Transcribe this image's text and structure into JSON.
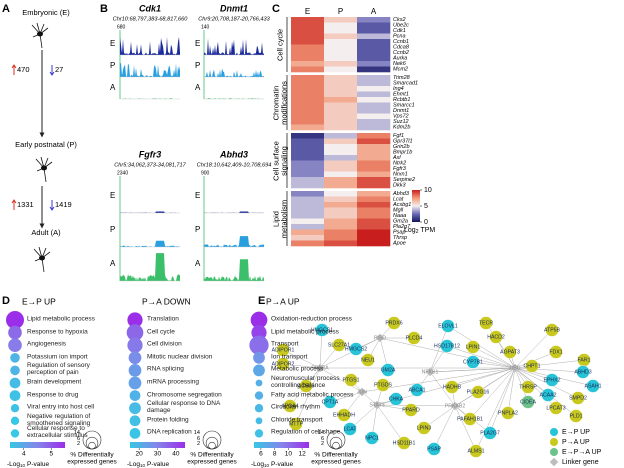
{
  "panel_a": {
    "letter": "A",
    "stages": [
      "Embryonic (E)",
      "Early postnatal (P)",
      "Adult (A)"
    ],
    "transitions": [
      {
        "up": 470,
        "down": 27
      },
      {
        "up": 1331,
        "down": 1419
      }
    ],
    "up_color": "#d93025",
    "down_color": "#3a3ad0"
  },
  "panel_b": {
    "letter": "B",
    "track_labels": [
      "E",
      "P",
      "A"
    ],
    "track_colors": [
      "#1b2a9c",
      "#2a9fe0",
      "#3cbf6a"
    ],
    "genes": [
      {
        "name": "Cdk1",
        "locus": "Chr10:68,797,383-68,817,660",
        "scale": 680
      },
      {
        "name": "Dnmt1",
        "locus": "Chr9:20,708,187-20,766,433",
        "scale": 140
      },
      {
        "name": "Fgfr3",
        "locus": "Chr5:34,062,373-34,081,717",
        "scale": 2340
      },
      {
        "name": "Abhd3",
        "locus": "Chr18:10,642,409-10,708,694",
        "scale": 900
      }
    ]
  },
  "panel_c": {
    "letter": "C",
    "columns": [
      "E",
      "P",
      "A"
    ],
    "clim": [
      0,
      10
    ],
    "colormap": [
      "#14145a",
      "#6a6ab8",
      "#f4eeee",
      "#f29a78",
      "#c81e1e"
    ],
    "colorbar": {
      "ticks": [
        10,
        5,
        0
      ],
      "log": "Log",
      "sub": "2",
      "unit": "TPM"
    },
    "groups": [
      {
        "name": "Cell cycle",
        "genes": [
          "Cks2",
          "Ube2c",
          "Cdk1",
          "Pcna",
          "Ccnb1",
          "Cdca8",
          "Ccnb2",
          "Aurka",
          "Nek6",
          "Mcm2"
        ],
        "values": [
          [
            9,
            6,
            3
          ],
          [
            9,
            5,
            2
          ],
          [
            9,
            5,
            2
          ],
          [
            9,
            6,
            4
          ],
          [
            9,
            5,
            2
          ],
          [
            8,
            5,
            2
          ],
          [
            8,
            5,
            2
          ],
          [
            8,
            5,
            2
          ],
          [
            7,
            6,
            3
          ],
          [
            8,
            5,
            1
          ]
        ]
      },
      {
        "name": "Chromatin modifications",
        "genes": [
          "Trim28",
          "Smarcad1",
          "Ing4",
          "Ehmt1",
          "Rcbtb1",
          "Smarcc1",
          "Dnmt1",
          "Vps72",
          "Suz12",
          "Kdm2b"
        ],
        "values": [
          [
            8,
            6,
            4
          ],
          [
            8,
            6,
            4
          ],
          [
            8,
            6,
            5
          ],
          [
            8,
            6,
            4
          ],
          [
            8,
            7,
            5
          ],
          [
            8,
            6,
            4
          ],
          [
            8,
            6,
            4
          ],
          [
            8,
            6,
            5
          ],
          [
            8,
            6,
            4
          ],
          [
            7,
            6,
            4
          ]
        ]
      },
      {
        "name": "Cell surface signaling",
        "genes": [
          "Fgf1",
          "Gpr37l1",
          "Grin2b",
          "Bmpr1b",
          "Axl",
          "Ntrk2",
          "Fgfr3",
          "Nrxn1",
          "Serpine2",
          "Dkk3"
        ],
        "values": [
          [
            1,
            4,
            8
          ],
          [
            2,
            6,
            9
          ],
          [
            2,
            5,
            7
          ],
          [
            2,
            5,
            7
          ],
          [
            2,
            4,
            7
          ],
          [
            3,
            6,
            8
          ],
          [
            3,
            6,
            8
          ],
          [
            3,
            5,
            7
          ],
          [
            4,
            7,
            9
          ],
          [
            4,
            7,
            9
          ]
        ]
      },
      {
        "name": "Lipid metabolism",
        "genes": [
          "Abhd3",
          "Lcat",
          "Acsbg1",
          "Mgll",
          "Naaa",
          "Gm2a",
          "Pla2g7",
          "Psap",
          "Thrsp",
          "Apoe"
        ],
        "values": [
          [
            3,
            5,
            7
          ],
          [
            4,
            6,
            8
          ],
          [
            4,
            7,
            9
          ],
          [
            4,
            6,
            8
          ],
          [
            4,
            6,
            8
          ],
          [
            5,
            7,
            9
          ],
          [
            4,
            7,
            9
          ],
          [
            7,
            8,
            10
          ],
          [
            6,
            8,
            10
          ],
          [
            8,
            9,
            10
          ]
        ]
      }
    ]
  },
  "panel_d": {
    "letter": "D",
    "colormap": [
      "#36c8e4",
      "#8585ea",
      "#9b2ee8"
    ],
    "legend": {
      "log": "-Log",
      "sub": "10",
      "pvalue": "P-value",
      "sizes": [
        14,
        6,
        2
      ],
      "size_label": [
        "% Differentially",
        "expressed genes"
      ]
    },
    "columns": [
      {
        "title": "E→P UP",
        "plim": [
          3.5,
          5.5
        ],
        "pticks": [
          4,
          5
        ],
        "terms": [
          {
            "label": "Lipid metabolic process",
            "p": 5.5,
            "size": 14
          },
          {
            "label": "Response to hypoxia",
            "p": 4.8,
            "size": 8
          },
          {
            "label": "Angiogenesis",
            "p": 4.6,
            "size": 8
          },
          {
            "label": "Potassium ion import",
            "p": 3.8,
            "size": 4
          },
          {
            "label": "Regulation of sensory perception of pain",
            "p": 3.8,
            "size": 4
          },
          {
            "label": "Brain development",
            "p": 3.7,
            "size": 5
          },
          {
            "label": "Response to drug",
            "p": 3.6,
            "size": 5
          },
          {
            "label": "Viral entry into host cell",
            "p": 3.6,
            "size": 3
          },
          {
            "label": "Negative regulation of smoothened signaling",
            "p": 3.5,
            "size": 3
          },
          {
            "label": "Cellular response to extracellular stimulus",
            "p": 3.5,
            "size": 3
          }
        ]
      },
      {
        "title": "P→A DOWN",
        "plim": [
          15,
          45
        ],
        "pticks": [
          20,
          30,
          40
        ],
        "terms": [
          {
            "label": "Translation",
            "p": 45,
            "size": 10
          },
          {
            "label": "Cell cycle",
            "p": 35,
            "size": 12
          },
          {
            "label": "Cell division",
            "p": 32,
            "size": 10
          },
          {
            "label": "Mitotic nuclear division",
            "p": 28,
            "size": 7
          },
          {
            "label": "RNA splicing",
            "p": 25,
            "size": 7
          },
          {
            "label": "mRNA processing",
            "p": 24,
            "size": 7
          },
          {
            "label": "Chromosome segregation",
            "p": 20,
            "size": 5
          },
          {
            "label": "Cellular response to DNA damage",
            "p": 18,
            "size": 6
          },
          {
            "label": "Protein folding",
            "p": 17,
            "size": 5
          },
          {
            "label": "DNA replication",
            "p": 16,
            "size": 5
          }
        ]
      },
      {
        "title": "P→A UP",
        "plim": [
          5,
          13
        ],
        "pticks": [
          6,
          8,
          10,
          12
        ],
        "terms": [
          {
            "label": "Oxidation-reduction process",
            "p": 13,
            "size": 12
          },
          {
            "label": "Lipid metabolic process",
            "p": 12,
            "size": 10
          },
          {
            "label": "Transport",
            "p": 10,
            "size": 16
          },
          {
            "label": "Ion transport",
            "p": 8,
            "size": 6
          },
          {
            "label": "Metabolic process",
            "p": 7,
            "size": 6
          },
          {
            "label": "Neuromuscular process controlling balance",
            "p": 6.5,
            "size": 2
          },
          {
            "label": "Fatty acid metabolic process",
            "p": 6.5,
            "size": 3
          },
          {
            "label": "Circadian rhythm",
            "p": 6,
            "size": 3
          },
          {
            "label": "Chloride transport",
            "p": 5.8,
            "size": 2
          },
          {
            "label": "Regulation of cell shape",
            "p": 5.5,
            "size": 3
          }
        ]
      }
    ]
  },
  "panel_e": {
    "letter": "E",
    "legend": [
      {
        "label": "E→P UP",
        "color": "#27c3d6"
      },
      {
        "label": "P→A UP",
        "color": "#c9c81c"
      },
      {
        "label": "E→P→A UP",
        "color": "#6dc28a"
      },
      {
        "label": "Linker gene",
        "color": "#bdbdbd"
      }
    ],
    "nodes": [
      {
        "label": "PRDX6",
        "group": 1
      },
      {
        "label": "PLCD4",
        "group": 1
      },
      {
        "label": "ELOVL1",
        "group": 0
      },
      {
        "label": "TECR",
        "group": 1
      },
      {
        "label": "HACD2",
        "group": 1
      },
      {
        "label": "ATP5B",
        "group": 1
      },
      {
        "label": "HMGCS1",
        "group": 0
      },
      {
        "label": "SLC27A1",
        "group": 1
      },
      {
        "label": "HMGCS2",
        "group": 0
      },
      {
        "label": "ADIPOR1",
        "group": 1
      },
      {
        "label": "ADIPOR2",
        "group": 1
      },
      {
        "label": "NEU1",
        "group": 1
      },
      {
        "label": "PISD",
        "group": 3
      },
      {
        "label": "HSD17B12",
        "group": 0
      },
      {
        "label": "LPIN1",
        "group": 1
      },
      {
        "label": "AGPAT3",
        "group": 1
      },
      {
        "label": "FDX1",
        "group": 1
      },
      {
        "label": "FAR1",
        "group": 1
      },
      {
        "label": "GM2A",
        "group": 0
      },
      {
        "label": "PPARA",
        "group": 3
      },
      {
        "label": "CYP7B1",
        "group": 0
      },
      {
        "label": "ACSL6",
        "group": 1
      },
      {
        "label": "PTGS1",
        "group": 1
      },
      {
        "label": "PTGDS",
        "group": 1
      },
      {
        "label": "ABCA1",
        "group": 0
      },
      {
        "label": "HADHB",
        "group": 1
      },
      {
        "label": "CHKA",
        "group": 0
      },
      {
        "label": "JUN",
        "group": 3
      },
      {
        "label": "CPT1A",
        "group": 0
      },
      {
        "label": "EHHADH",
        "group": 1
      },
      {
        "label": "APOA4",
        "group": 1
      },
      {
        "label": "MTTP",
        "group": 1
      },
      {
        "label": "LCAT",
        "group": 0
      },
      {
        "label": "NPC1",
        "group": 0
      },
      {
        "label": "STAT3",
        "group": 3
      },
      {
        "label": "PPARD",
        "group": 1
      },
      {
        "label": "HSD11B1",
        "group": 1
      },
      {
        "label": "LPIN3",
        "group": 1
      },
      {
        "label": "PSAP",
        "group": 0
      },
      {
        "label": "ALMS1",
        "group": 1
      },
      {
        "label": "PLA2G7",
        "group": 0
      },
      {
        "label": "PAFAH1B1",
        "group": 1
      },
      {
        "label": "PRKAB2",
        "group": 3
      },
      {
        "label": "PLA2G16",
        "group": 1
      },
      {
        "label": "NFKB1",
        "group": 3
      },
      {
        "label": "UBC",
        "group": 3
      },
      {
        "label": "PNPLA2",
        "group": 1
      },
      {
        "label": "CIDEA",
        "group": 2
      },
      {
        "label": "THRSP",
        "group": 1
      },
      {
        "label": "CHPT1",
        "group": 1
      },
      {
        "label": "EPHX2",
        "group": 0
      },
      {
        "label": "ACAA2",
        "group": 0
      },
      {
        "label": "ABHD3",
        "group": 0
      },
      {
        "label": "ASAH1",
        "group": 0
      },
      {
        "label": "SMPD2",
        "group": 1
      },
      {
        "label": "LPCAT3",
        "group": 1
      },
      {
        "label": "PLD1",
        "group": 1
      }
    ]
  }
}
